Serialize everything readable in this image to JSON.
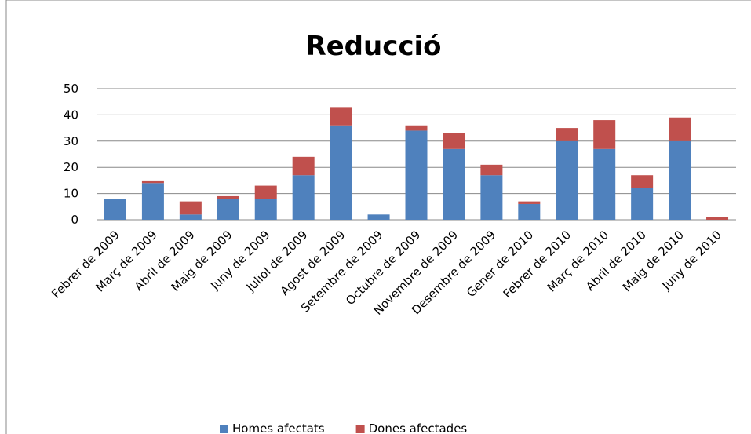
{
  "chart_data": {
    "type": "stacked_bar",
    "title": "Reducció",
    "categories": [
      "Febrer de 2009",
      "Març de 2009",
      "Abril de 2009",
      "Maig de 2009",
      "Juny de 2009",
      "Juliol de 2009",
      "Agost de 2009",
      "Setembre de 2009",
      "Octubre de 2009",
      "Novembre de 2009",
      "Desembre de 2009",
      "Gener de 2010",
      "Febrer de 2010",
      "Març de 2010",
      "Abril de 2010",
      "Maig de 2010",
      "Juny de 2010"
    ],
    "series": [
      {
        "name": "Homes afectats",
        "color": "#4f81bd",
        "values": [
          8,
          14,
          2,
          8,
          8,
          17,
          36,
          2,
          34,
          27,
          17,
          6,
          30,
          27,
          12,
          30,
          0
        ]
      },
      {
        "name": "Dones afectades",
        "color": "#c0504d",
        "values": [
          0,
          1,
          5,
          1,
          5,
          7,
          7,
          0,
          2,
          6,
          4,
          1,
          5,
          11,
          5,
          9,
          1
        ]
      }
    ],
    "ylim": [
      0,
      50
    ],
    "yticks": [
      0,
      10,
      20,
      30,
      40,
      50
    ],
    "grid": true,
    "legend": "bottom"
  }
}
